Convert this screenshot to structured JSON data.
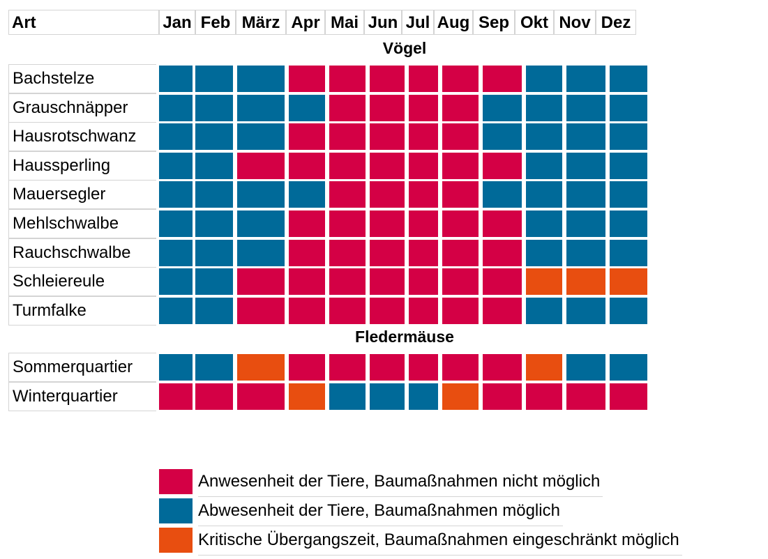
{
  "chart_data": {
    "type": "heatmap",
    "header_art": "Art",
    "months": [
      "Jan",
      "Feb",
      "März",
      "Apr",
      "Mai",
      "Jun",
      "Jul",
      "Aug",
      "Sep",
      "Okt",
      "Nov",
      "Dez"
    ],
    "colors": {
      "A": "#d40045",
      "B": "#006a99",
      "K": "#e84e10"
    },
    "sections": [
      {
        "title": "Vögel",
        "rows": [
          {
            "name": "Bachstelze",
            "values": [
              "B",
              "B",
              "B",
              "A",
              "A",
              "A",
              "A",
              "A",
              "A",
              "B",
              "B",
              "B"
            ]
          },
          {
            "name": "Grauschnäpper",
            "values": [
              "B",
              "B",
              "B",
              "B",
              "A",
              "A",
              "A",
              "A",
              "B",
              "B",
              "B",
              "B"
            ]
          },
          {
            "name": "Hausrotschwanz",
            "values": [
              "B",
              "B",
              "B",
              "A",
              "A",
              "A",
              "A",
              "A",
              "B",
              "B",
              "B",
              "B"
            ]
          },
          {
            "name": "Haussperling",
            "values": [
              "B",
              "B",
              "A",
              "A",
              "A",
              "A",
              "A",
              "A",
              "A",
              "B",
              "B",
              "B"
            ]
          },
          {
            "name": "Mauersegler",
            "values": [
              "B",
              "B",
              "B",
              "B",
              "A",
              "A",
              "A",
              "A",
              "B",
              "B",
              "B",
              "B"
            ]
          },
          {
            "name": "Mehlschwalbe",
            "values": [
              "B",
              "B",
              "B",
              "A",
              "A",
              "A",
              "A",
              "A",
              "A",
              "B",
              "B",
              "B"
            ]
          },
          {
            "name": "Rauchschwalbe",
            "values": [
              "B",
              "B",
              "B",
              "A",
              "A",
              "A",
              "A",
              "A",
              "A",
              "B",
              "B",
              "B"
            ]
          },
          {
            "name": "Schleiereule",
            "values": [
              "B",
              "B",
              "A",
              "A",
              "A",
              "A",
              "A",
              "A",
              "A",
              "K",
              "K",
              "K"
            ]
          },
          {
            "name": "Turmfalke",
            "values": [
              "B",
              "B",
              "A",
              "A",
              "A",
              "A",
              "A",
              "A",
              "A",
              "B",
              "B",
              "B"
            ]
          }
        ]
      },
      {
        "title": "Fledermäuse",
        "rows": [
          {
            "name": "Sommerquartier",
            "values": [
              "B",
              "B",
              "K",
              "A",
              "A",
              "A",
              "A",
              "A",
              "A",
              "K",
              "B",
              "B"
            ]
          },
          {
            "name": "Winterquartier",
            "values": [
              "A",
              "A",
              "A",
              "K",
              "B",
              "B",
              "B",
              "K",
              "A",
              "A",
              "A",
              "A"
            ]
          }
        ]
      }
    ],
    "legend": [
      {
        "key": "A",
        "label": "Anwesenheit der Tiere, Baumaßnahmen nicht möglich"
      },
      {
        "key": "B",
        "label": "Abwesenheit der Tiere, Baumaßnahmen möglich"
      },
      {
        "key": "K",
        "label": "Kritische Übergangszeit, Baumaßnahmen eingeschränkt möglich"
      }
    ]
  }
}
